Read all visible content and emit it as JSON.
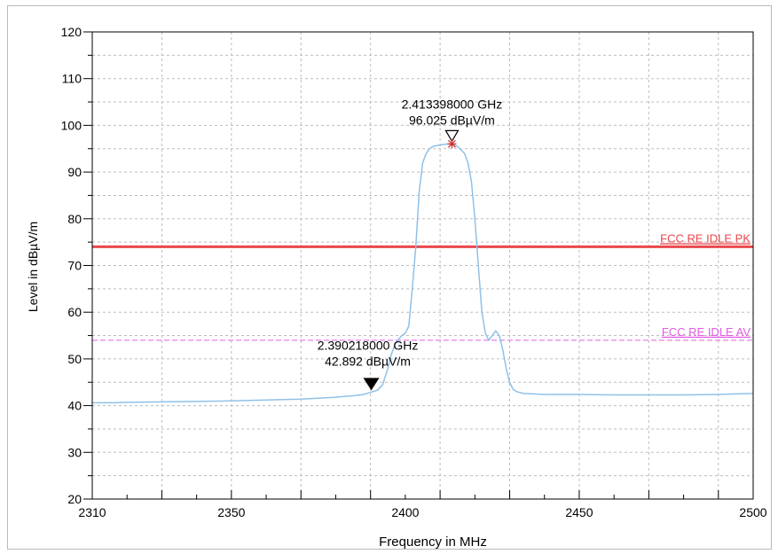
{
  "chart_data": {
    "type": "line",
    "xlabel": "Frequency in MHz",
    "ylabel": "Level in dBµV/m",
    "xlim": [
      2310,
      2500
    ],
    "ylim": [
      20,
      120
    ],
    "x_ticks": [
      2310,
      2350,
      2400,
      2450,
      2500
    ],
    "y_ticks": [
      20,
      30,
      40,
      50,
      60,
      70,
      80,
      90,
      100,
      110,
      120
    ],
    "grid": true,
    "series": [
      {
        "color": "#8fc1e8",
        "x": [
          2310,
          2316,
          2320,
          2330,
          2340,
          2350,
          2360,
          2370,
          2375,
          2380,
          2385,
          2388,
          2390.2,
          2392,
          2393.5,
          2395,
          2396,
          2397,
          2398,
          2399,
          2400,
          2401,
          2402,
          2403,
          2404,
          2405,
          2406,
          2407,
          2408,
          2410,
          2412,
          2413.4,
          2415,
          2417,
          2418,
          2419,
          2420,
          2421,
          2422,
          2423,
          2424,
          2425,
          2426,
          2427,
          2428,
          2429,
          2430,
          2431,
          2432,
          2434,
          2440,
          2450,
          2460,
          2470,
          2480,
          2490,
          2495,
          2500
        ],
        "y": [
          40.6,
          40.6,
          40.7,
          40.8,
          40.9,
          41.0,
          41.2,
          41.4,
          41.6,
          41.8,
          42.1,
          42.4,
          42.9,
          43.3,
          44.5,
          48.0,
          51.0,
          53.0,
          54.2,
          55.0,
          55.5,
          57.0,
          65.0,
          74.0,
          86.0,
          92.0,
          94.0,
          95.0,
          95.5,
          95.8,
          96.0,
          96.0,
          95.5,
          94.0,
          92.0,
          88.0,
          80.0,
          70.0,
          60.0,
          55.5,
          54.0,
          55.0,
          56.0,
          55.0,
          52.0,
          48.0,
          45.0,
          43.5,
          43.0,
          42.6,
          42.4,
          42.4,
          42.3,
          42.3,
          42.3,
          42.4,
          42.5,
          42.6
        ]
      }
    ],
    "limit_lines": [
      {
        "name": "FCC RE IDLE PK",
        "y": 74,
        "color": "#e8484c",
        "style": "solid"
      },
      {
        "name": "FCC RE IDLE AV",
        "y": 54,
        "color": "#e25ce2",
        "style": "dashed"
      }
    ],
    "markers": [
      {
        "x": 2413.398,
        "y": 96.025,
        "label_freq": "2.413398000 GHz",
        "label_level": "96.025 dBµV/m",
        "symbol": "open-triangle"
      },
      {
        "x": 2390.218,
        "y": 42.892,
        "label_freq": "2.390218000 GHz",
        "label_level": "42.892 dBµV/m",
        "symbol": "filled-triangle"
      }
    ]
  }
}
